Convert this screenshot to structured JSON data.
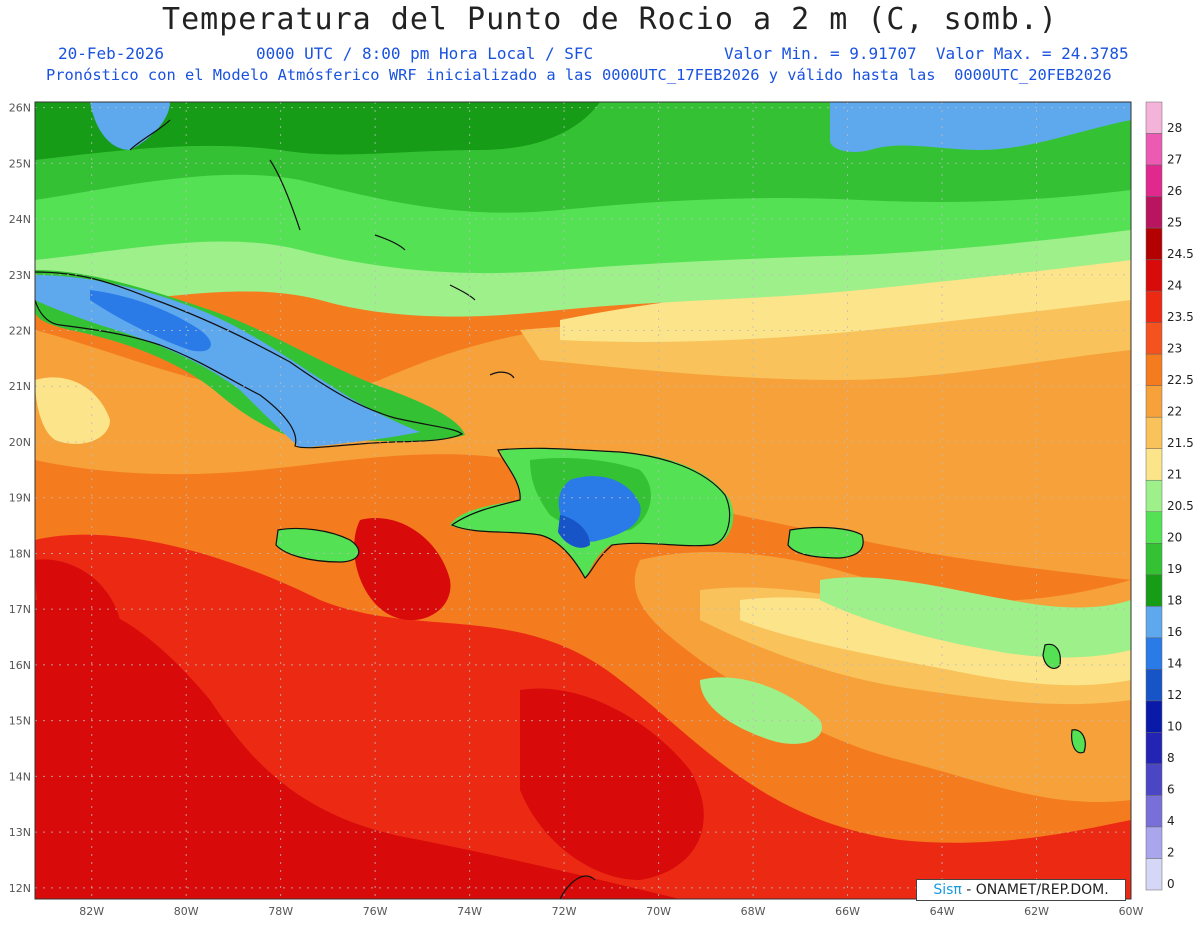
{
  "header": {
    "title": "Temperatura del Punto de Rocio a 2 m (C, somb.)",
    "date": "20-Feb-2026",
    "time": "0000 UTC / 8:00 pm Hora Local / SFC",
    "stats": "Valor Min. = 9.91707  Valor Max. = 24.3785",
    "model_line": "Pronóstico con el Modelo Atmósferico WRF inicializado a las 0000UTC_17FEB2026 y válido hasta las  0000UTC_20FEB2026"
  },
  "map": {
    "lon_range": [
      -83.2,
      -60
    ],
    "lat_range": [
      11.8,
      26.1
    ],
    "lat_ticks": [
      "26N",
      "25N",
      "24N",
      "23N",
      "22N",
      "21N",
      "20N",
      "19N",
      "18N",
      "17N",
      "16N",
      "15N",
      "14N",
      "13N",
      "12N"
    ],
    "lon_ticks": [
      "82W",
      "80W",
      "78W",
      "76W",
      "74W",
      "72W",
      "70W",
      "68W",
      "66W",
      "64W",
      "62W",
      "60W"
    ],
    "grid": true
  },
  "legend": {
    "levels": [
      {
        "label": "28",
        "color": "#f4b3d8"
      },
      {
        "label": "27",
        "color": "#ec5ab4"
      },
      {
        "label": "26",
        "color": "#e0288f"
      },
      {
        "label": "25",
        "color": "#b81460"
      },
      {
        "label": "24.5",
        "color": "#b30000"
      },
      {
        "label": "24",
        "color": "#d80a0a"
      },
      {
        "label": "23.5",
        "color": "#ec2a14"
      },
      {
        "label": "23",
        "color": "#f4521e"
      },
      {
        "label": "22.5",
        "color": "#f47c1e"
      },
      {
        "label": "22",
        "color": "#f6a13a"
      },
      {
        "label": "21.5",
        "color": "#f9c25a"
      },
      {
        "label": "21",
        "color": "#fbe48a"
      },
      {
        "label": "20.5",
        "color": "#9ef08a"
      },
      {
        "label": "20",
        "color": "#54e254"
      },
      {
        "label": "19",
        "color": "#34c234"
      },
      {
        "label": "18",
        "color": "#169c16"
      },
      {
        "label": "16",
        "color": "#5ea8ee"
      },
      {
        "label": "14",
        "color": "#2a7ae8"
      },
      {
        "label": "12",
        "color": "#1654c8"
      },
      {
        "label": "10",
        "color": "#0a1aa8"
      },
      {
        "label": "8",
        "color": "#2424b4"
      },
      {
        "label": "6",
        "color": "#4a46c4"
      },
      {
        "label": "4",
        "color": "#7870d8"
      },
      {
        "label": "2",
        "color": "#aaa6ee"
      },
      {
        "label": "0",
        "color": "#d6d6f6"
      }
    ]
  },
  "footer": {
    "brand": "Sisπ",
    "credit": " - ONAMET/REP.DOM."
  }
}
